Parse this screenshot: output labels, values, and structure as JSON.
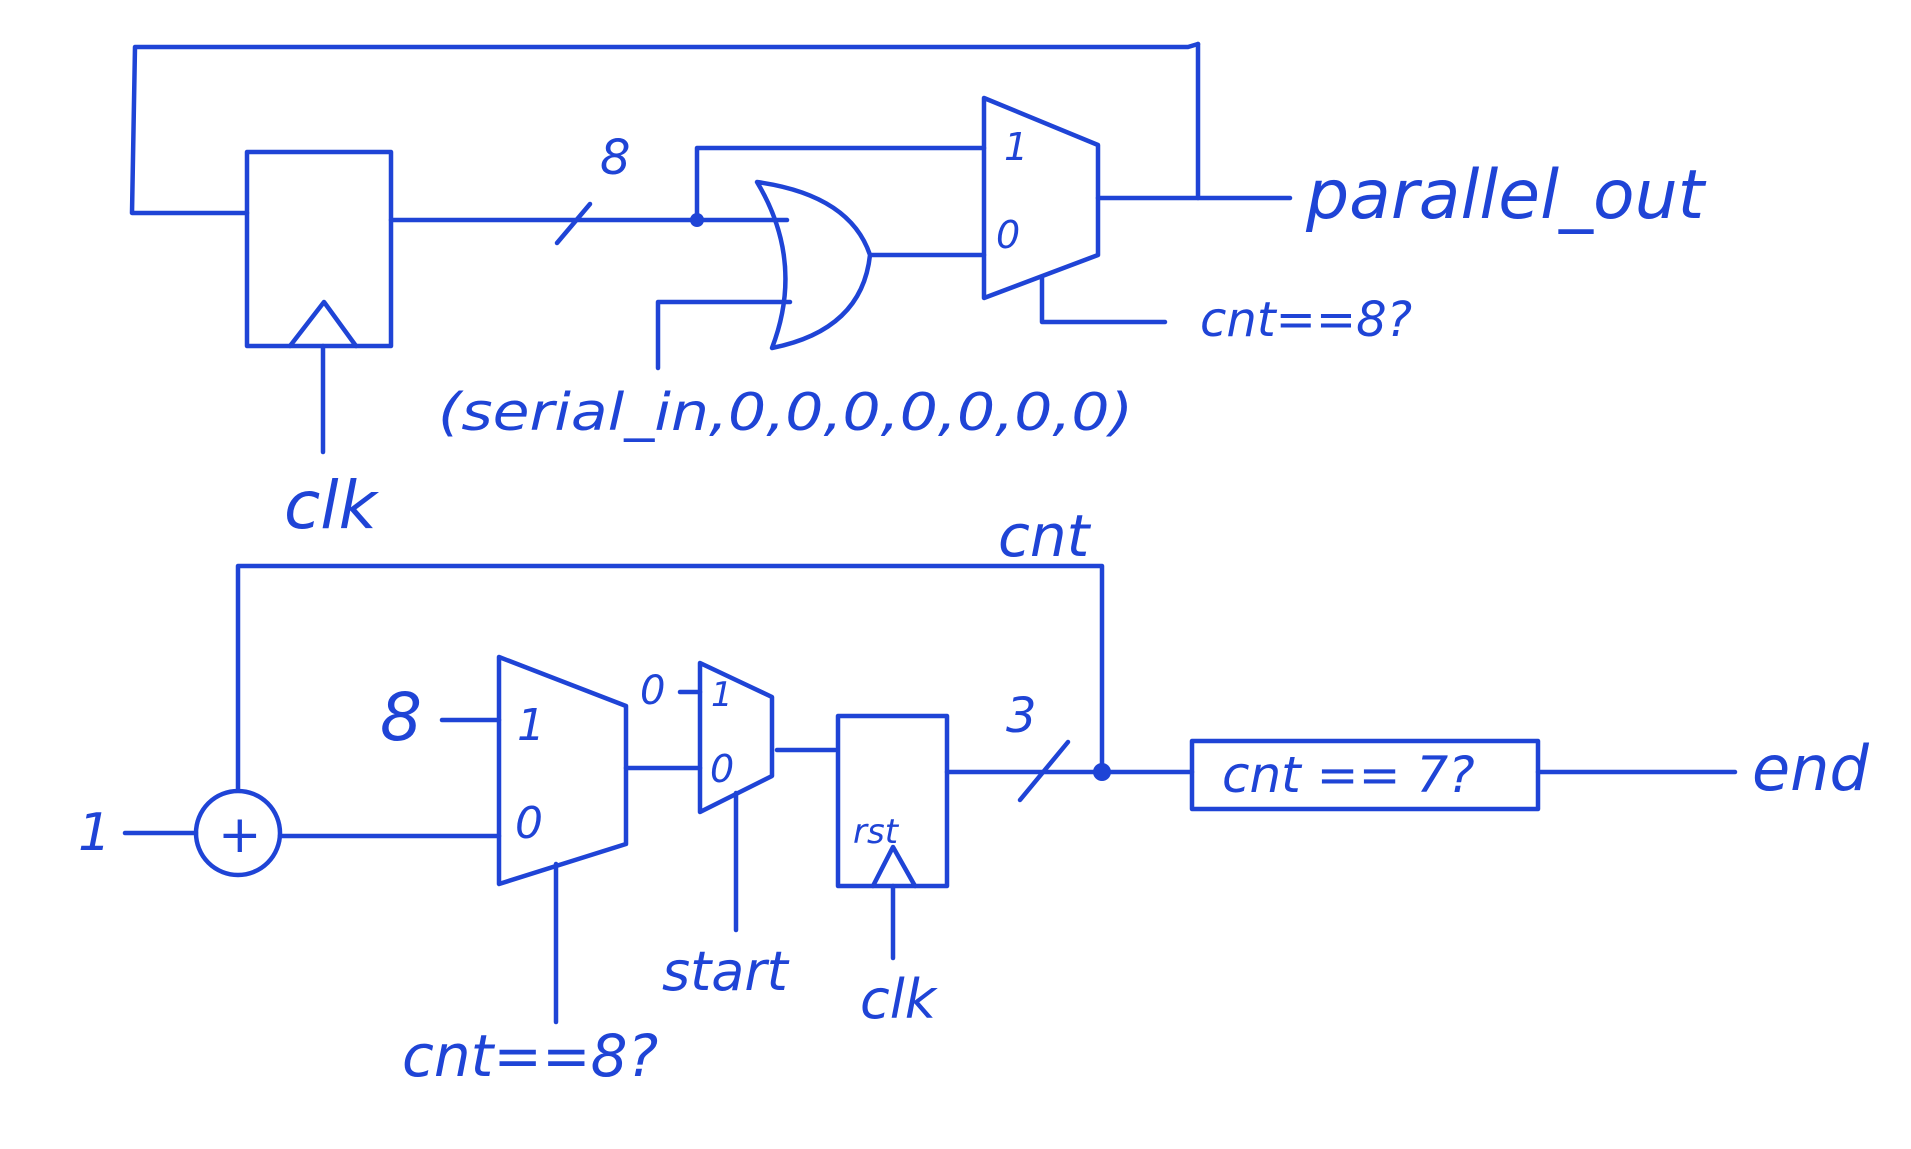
{
  "colors": {
    "ink": "#1f44d6",
    "paper": "#ffffff"
  },
  "top": {
    "clk": "clk",
    "bus_width": "8",
    "mux_in1": "1",
    "mux_in0": "0",
    "or_input": "(serial_in,0,0,0,0,0,0,0)",
    "select": "cnt==8?",
    "output": "parallel_out"
  },
  "bottom": {
    "cnt": "cnt",
    "const_one": "1",
    "adder": "+",
    "const_eight": "8",
    "mux1_in1": "1",
    "mux1_in0": "0",
    "mux1_select": "cnt==8?",
    "const_zero": "0",
    "mux2_in1": "1",
    "mux2_in0": "0",
    "mux2_select": "start",
    "reg_rst": "rst",
    "clk": "clk",
    "bus_width": "3",
    "compare": "cnt == 7?",
    "end": "end"
  }
}
